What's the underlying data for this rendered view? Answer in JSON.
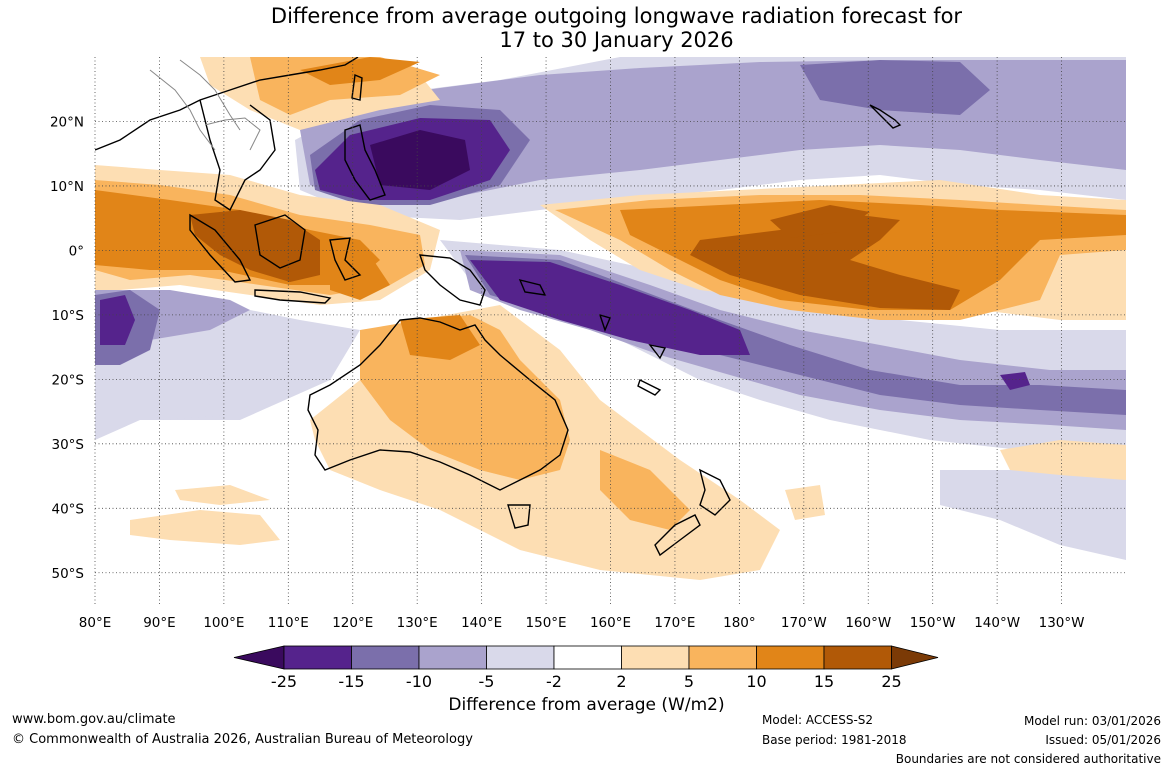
{
  "title": {
    "line1": "Difference from average outgoing longwave radiation forecast for",
    "line2": "17 to 30 January 2026"
  },
  "map": {
    "lon_labels": [
      "80°E",
      "90°E",
      "100°E",
      "110°E",
      "120°E",
      "130°E",
      "140°E",
      "150°E",
      "160°E",
      "170°E",
      "180°",
      "170°W",
      "160°W",
      "150°W",
      "140°W",
      "130°W"
    ],
    "lat_labels": [
      "20°N",
      "10°N",
      "0°",
      "10°S",
      "20°S",
      "30°S",
      "40°S",
      "50°S"
    ],
    "lon_range": [
      80,
      240
    ],
    "lat_range": [
      -55,
      30
    ]
  },
  "colorbar": {
    "title": "Difference from average (W/m2)",
    "ticks": [
      "-25",
      "-15",
      "-10",
      "-5",
      "-2",
      "2",
      "5",
      "10",
      "15",
      "25"
    ],
    "colors": [
      "#3a0a5e",
      "#55238c",
      "#7b6fab",
      "#aaa3cd",
      "#d9d9ea",
      "#ffffff",
      "#fddeb3",
      "#f9b45d",
      "#e18518",
      "#b15907",
      "#7b3a06"
    ]
  },
  "footer": {
    "url": "www.bom.gov.au/climate",
    "copyright": "© Commonwealth of Australia 2026, Australian Bureau of Meteorology",
    "model": "Model: ACCESS-S2",
    "base_period": "Base period: 1981-2018",
    "model_run": "Model run: 03/01/2026",
    "issued": "Issued: 05/01/2026",
    "disclaimer": "Boundaries are not considered authoritative"
  }
}
